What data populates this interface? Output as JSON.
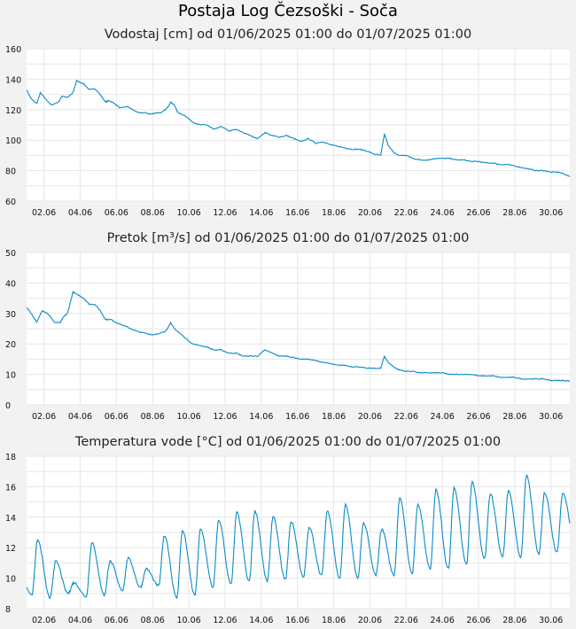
{
  "page": {
    "title": "Postaja Log Čezsoški - Soča"
  },
  "chart_data": [
    {
      "type": "line",
      "title": "Vodostaj [cm] od 01/06/2025 01:00 do 01/07/2025 01:00",
      "xlabel": "",
      "ylabel": "",
      "x_tick_labels": [
        "02.06",
        "04.06",
        "06.06",
        "08.06",
        "10.06",
        "12.06",
        "14.06",
        "16.06",
        "18.06",
        "20.06",
        "22.06",
        "24.06",
        "26.06",
        "28.06",
        "30.06"
      ],
      "x_ticks_day": [
        2,
        4,
        6,
        8,
        10,
        12,
        14,
        16,
        18,
        20,
        22,
        24,
        26,
        28,
        30
      ],
      "y_ticks": [
        60,
        80,
        100,
        120,
        140,
        160
      ],
      "xlim": [
        1.04,
        31.04
      ],
      "ylim": [
        60,
        160
      ],
      "grid": true,
      "line_color": "#0a8bc6",
      "x": [
        1.04,
        1.3,
        1.6,
        1.8,
        2.1,
        2.4,
        2.8,
        3.0,
        3.3,
        3.6,
        3.8,
        4.2,
        4.5,
        4.8,
        5.1,
        5.4,
        5.6,
        5.9,
        6.2,
        6.6,
        6.9,
        7.2,
        7.6,
        7.9,
        8.2,
        8.5,
        8.8,
        9.0,
        9.2,
        9.4,
        9.8,
        10.2,
        10.6,
        11.0,
        11.4,
        11.8,
        12.2,
        12.6,
        13.0,
        13.4,
        13.8,
        14.2,
        14.6,
        15.0,
        15.4,
        15.8,
        16.2,
        16.6,
        17.0,
        17.4,
        17.8,
        18.2,
        18.6,
        19.0,
        19.4,
        19.8,
        20.2,
        20.6,
        20.8,
        21.0,
        21.3,
        21.6,
        22.0,
        22.4,
        22.8,
        23.2,
        23.6,
        24.0,
        24.4,
        24.8,
        25.2,
        25.6,
        26.0,
        26.4,
        26.8,
        27.2,
        27.6,
        28.0,
        28.4,
        28.8,
        29.2,
        29.6,
        30.0,
        30.4,
        30.7,
        31.04
      ],
      "y": [
        133,
        127,
        124,
        131,
        127,
        123,
        125,
        129,
        128,
        131,
        139,
        137,
        133,
        134,
        130,
        125,
        126,
        124,
        121,
        122,
        120,
        118,
        118,
        117,
        118,
        118,
        121,
        125,
        123,
        118,
        116,
        112,
        110,
        110,
        107,
        109,
        106,
        107,
        105,
        103,
        101,
        105,
        103,
        102,
        103,
        101,
        99,
        101,
        98,
        99,
        97,
        96,
        95,
        94,
        94,
        93,
        91,
        90,
        104,
        97,
        92,
        90,
        90,
        88,
        87,
        87,
        88,
        88,
        88,
        87,
        87,
        86,
        86,
        85,
        85,
        84,
        84,
        83,
        82,
        81,
        80,
        80,
        79,
        79,
        78,
        76
      ]
    },
    {
      "type": "line",
      "title": "Pretok [m³/s] od 01/06/2025 01:00 do 01/07/2025 01:00",
      "xlabel": "",
      "ylabel": "",
      "x_tick_labels": [
        "02.06",
        "04.06",
        "06.06",
        "08.06",
        "10.06",
        "12.06",
        "14.06",
        "16.06",
        "18.06",
        "20.06",
        "22.06",
        "24.06",
        "26.06",
        "28.06",
        "30.06"
      ],
      "x_ticks_day": [
        2,
        4,
        6,
        8,
        10,
        12,
        14,
        16,
        18,
        20,
        22,
        24,
        26,
        28,
        30
      ],
      "y_ticks": [
        0,
        10,
        20,
        30,
        40,
        50
      ],
      "xlim": [
        1.04,
        31.04
      ],
      "ylim": [
        0,
        50
      ],
      "grid": true,
      "line_color": "#0a8bc6",
      "x": [
        1.04,
        1.3,
        1.6,
        1.9,
        2.2,
        2.6,
        2.9,
        3.1,
        3.3,
        3.6,
        3.9,
        4.2,
        4.5,
        4.8,
        5.1,
        5.4,
        5.7,
        6.0,
        6.4,
        6.8,
        7.2,
        7.6,
        8.0,
        8.4,
        8.7,
        9.0,
        9.2,
        9.4,
        9.8,
        10.2,
        10.6,
        11.0,
        11.4,
        11.8,
        12.2,
        12.6,
        13.0,
        13.4,
        13.8,
        14.2,
        14.6,
        15.0,
        15.4,
        15.8,
        16.2,
        16.6,
        17.0,
        17.4,
        17.8,
        18.2,
        18.6,
        19.0,
        19.4,
        19.8,
        20.2,
        20.6,
        20.8,
        21.0,
        21.3,
        21.6,
        22.0,
        22.4,
        22.8,
        23.2,
        23.6,
        24.0,
        24.4,
        24.8,
        25.2,
        25.6,
        26.0,
        26.4,
        26.8,
        27.2,
        27.6,
        28.0,
        28.4,
        28.8,
        29.2,
        29.6,
        30.0,
        30.4,
        30.7,
        31.04
      ],
      "y": [
        32,
        30,
        27,
        31,
        30,
        27,
        27,
        29,
        30,
        37,
        36,
        35,
        33,
        33,
        31,
        28,
        28,
        27,
        26,
        25,
        24,
        23.5,
        23,
        23.5,
        24,
        27,
        25,
        24,
        22,
        20,
        19.5,
        19,
        18,
        18,
        17,
        17,
        16,
        16,
        16,
        18,
        17,
        16,
        16,
        15.5,
        15,
        15,
        14.5,
        14,
        13.5,
        13,
        13,
        12.5,
        12.5,
        12,
        12,
        12,
        16,
        14,
        12.5,
        11.5,
        11,
        11,
        10.5,
        10.5,
        10.5,
        10.5,
        10,
        10,
        10,
        10,
        9.5,
        9.5,
        9.5,
        9,
        9,
        9,
        8.5,
        8.5,
        8.5,
        8.5,
        8,
        8,
        8,
        7.8
      ]
    },
    {
      "type": "line",
      "title": "Temperatura vode [°C] od 01/06/2025 01:00 do 01/07/2025 01:00",
      "xlabel": "",
      "ylabel": "",
      "x_tick_labels": [
        "02.06",
        "04.06",
        "06.06",
        "08.06",
        "10.06",
        "12.06",
        "14.06",
        "16.06",
        "18.06",
        "20.06",
        "22.06",
        "24.06",
        "26.06",
        "28.06",
        "30.06"
      ],
      "x_ticks_day": [
        2,
        4,
        6,
        8,
        10,
        12,
        14,
        16,
        18,
        20,
        22,
        24,
        26,
        28,
        30
      ],
      "y_ticks": [
        8,
        10,
        12,
        14,
        16,
        18
      ],
      "xlim": [
        1.04,
        31.04
      ],
      "ylim": [
        8,
        18
      ],
      "grid": true,
      "line_color": "#0a8bc6",
      "peak_day_offset": 0.65,
      "daily_min": [
        8.9,
        8.7,
        9.0,
        8.8,
        8.9,
        9.2,
        9.4,
        9.5,
        8.7,
        8.9,
        9.4,
        9.6,
        9.8,
        9.8,
        9.9,
        10.1,
        10.2,
        10.0,
        10.0,
        10.2,
        10.2,
        10.3,
        10.6,
        10.6,
        10.9,
        11.3,
        11.4,
        11.4,
        11.6,
        11.7,
        12.3
      ],
      "daily_max": [
        12.5,
        11.1,
        9.7,
        12.3,
        11.1,
        11.3,
        10.6,
        12.8,
        13.1,
        13.2,
        13.8,
        14.3,
        14.4,
        14.0,
        13.7,
        13.3,
        14.4,
        14.8,
        13.6,
        13.2,
        15.2,
        14.8,
        15.8,
        15.9,
        16.3,
        15.5,
        15.7,
        16.7,
        15.6,
        15.6,
        12.3
      ]
    }
  ]
}
